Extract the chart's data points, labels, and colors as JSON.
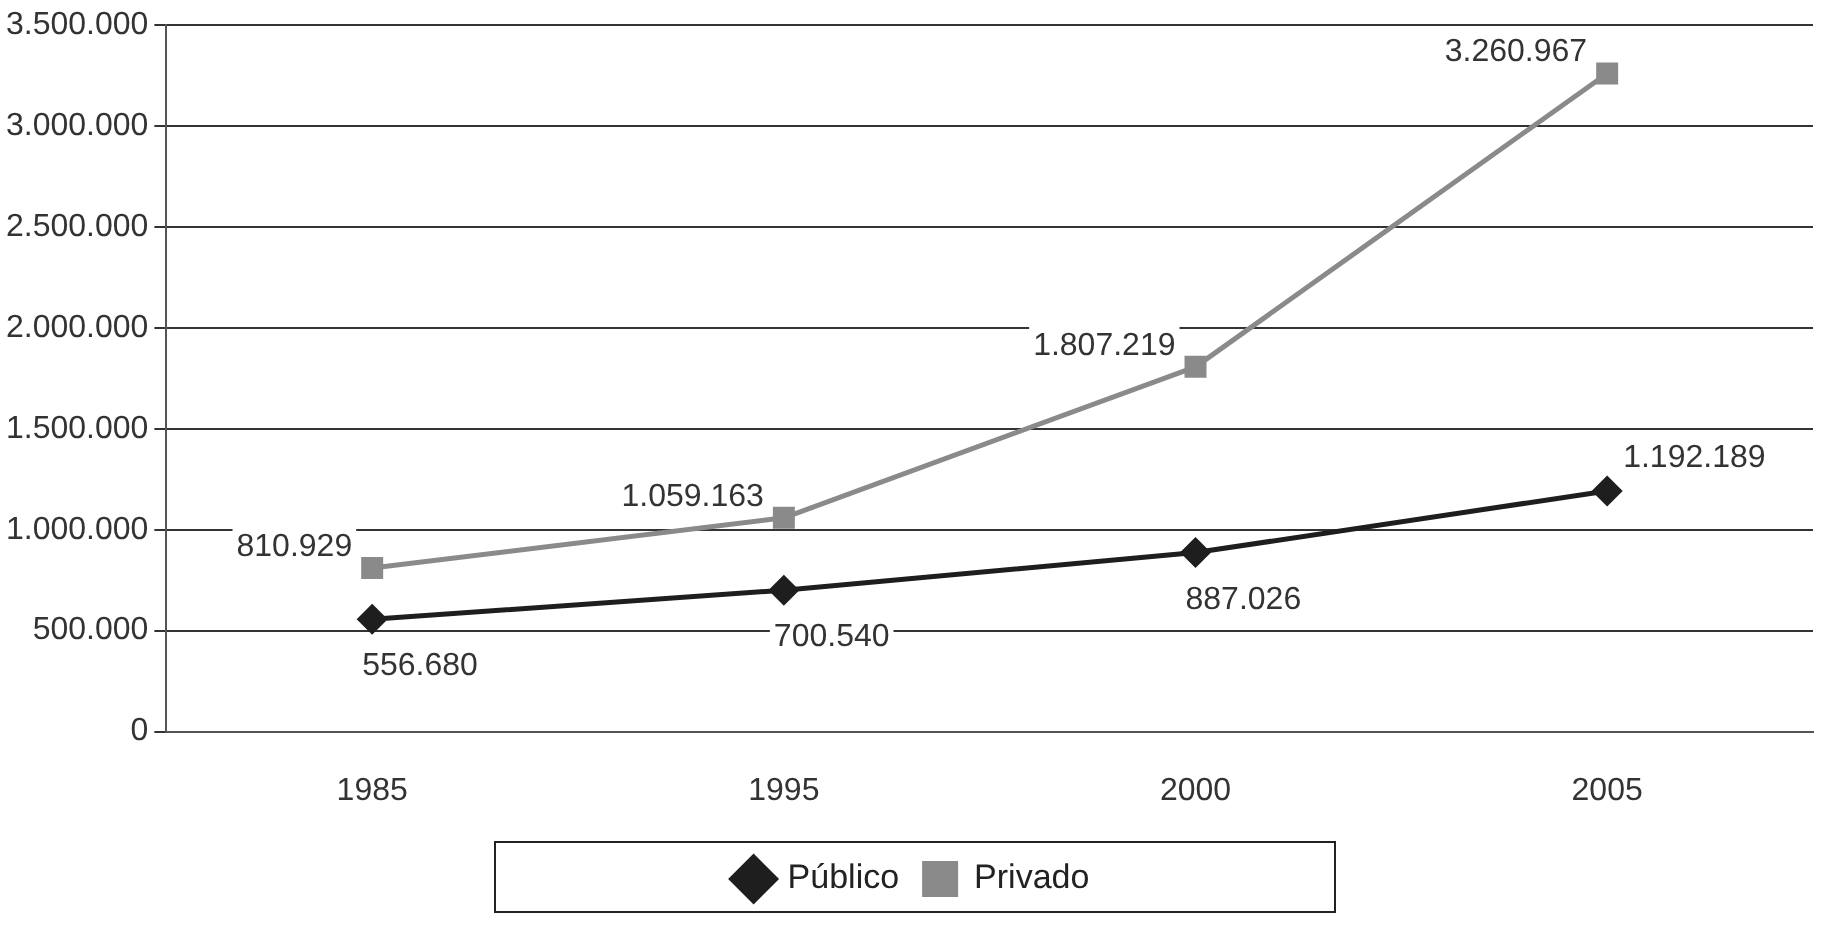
{
  "chart_data": {
    "type": "line",
    "categories": [
      "1985",
      "1995",
      "2000",
      "2005"
    ],
    "series": [
      {
        "name": "Público",
        "color": "#1e1e1e",
        "values": [
          556680,
          700540,
          887026,
          1192189
        ],
        "value_labels": [
          "556.680",
          "700.540",
          "887.026",
          "1.192.189"
        ],
        "marker": "diamond"
      },
      {
        "name": "Privado",
        "color": "#8a8a8a",
        "values": [
          810929,
          1059163,
          1807219,
          3260967
        ],
        "value_labels": [
          "810.929",
          "1.059.163",
          "1.807.219",
          "3.260.967"
        ],
        "marker": "square"
      }
    ],
    "ylim": [
      0,
      3500000
    ],
    "yticks": [
      0,
      {
        "value": 500000,
        "label": "500.000"
      },
      {
        "value": 1000000,
        "label": "1.000.000"
      },
      {
        "value": 1500000,
        "label": "1.500.000"
      },
      {
        "value": 2000000,
        "label": "2.000.000"
      },
      {
        "value": 2500000,
        "label": "2.500.000"
      },
      {
        "value": 3000000,
        "label": "3.000.000"
      },
      {
        "value": 3500000,
        "label": "3.500.000"
      }
    ],
    "grid": "y",
    "legend": "bottom"
  }
}
